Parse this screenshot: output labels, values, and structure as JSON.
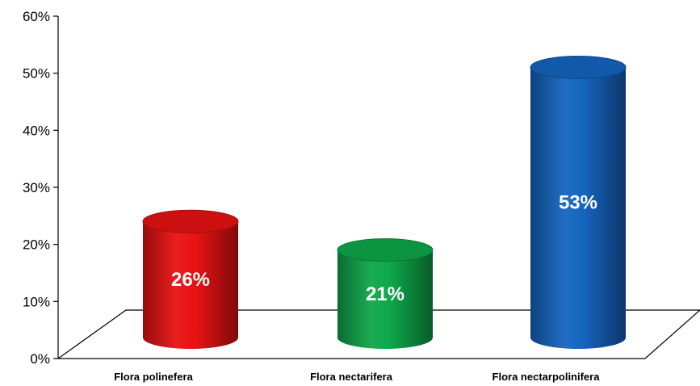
{
  "chart_data": {
    "type": "bar",
    "style": "3d-cylinder",
    "categories": [
      "Flora polinefera",
      "Flora nectarifera",
      "Flora nectarpolinifera"
    ],
    "values": [
      26,
      21,
      53
    ],
    "data_labels": [
      "26%",
      "21%",
      "53%"
    ],
    "colors": [
      "#e81212",
      "#0ea84a",
      "#1565c0"
    ],
    "yticks": [
      "0%",
      "10%",
      "20%",
      "30%",
      "40%",
      "50%",
      "60%"
    ],
    "ylim": [
      0,
      60
    ],
    "grid": false,
    "legend": "none"
  }
}
